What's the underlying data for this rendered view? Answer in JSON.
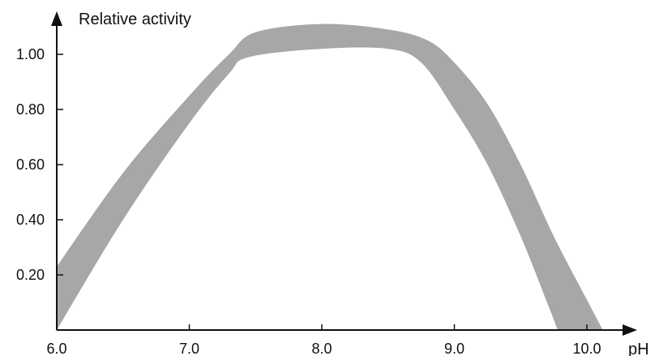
{
  "chart_data": {
    "type": "area",
    "title": "",
    "xlabel": "pH",
    "ylabel": "Relative activity",
    "xlim": [
      6.0,
      10.25
    ],
    "ylim": [
      0,
      1.2
    ],
    "x_ticks": [
      6.0,
      7.0,
      8.0,
      9.0,
      10.0
    ],
    "x_tick_labels": [
      "6.0",
      "7.0",
      "8.0",
      "9.0",
      "10.0"
    ],
    "y_ticks": [
      0.2,
      0.4,
      0.6,
      0.8,
      1.0
    ],
    "y_tick_labels": [
      "0.20",
      "0.40",
      "0.60",
      "0.80",
      "1.00"
    ],
    "grid": false,
    "band_color": "#a7a7a7",
    "band": {
      "upper": [
        [
          6.0,
          0.23
        ],
        [
          6.5,
          0.57
        ],
        [
          7.0,
          0.85
        ],
        [
          7.3,
          1.0
        ],
        [
          7.5,
          1.08
        ],
        [
          8.0,
          1.11
        ],
        [
          8.5,
          1.09
        ],
        [
          8.8,
          1.05
        ],
        [
          9.0,
          0.97
        ],
        [
          9.25,
          0.82
        ],
        [
          9.5,
          0.6
        ],
        [
          9.75,
          0.34
        ],
        [
          10.0,
          0.11
        ],
        [
          10.12,
          0.0
        ]
      ],
      "lower": [
        [
          6.0,
          0.0
        ],
        [
          6.5,
          0.4
        ],
        [
          7.0,
          0.75
        ],
        [
          7.3,
          0.93
        ],
        [
          7.45,
          0.99
        ],
        [
          8.0,
          1.02
        ],
        [
          8.5,
          1.02
        ],
        [
          8.75,
          0.97
        ],
        [
          9.0,
          0.8
        ],
        [
          9.25,
          0.6
        ],
        [
          9.5,
          0.34
        ],
        [
          9.7,
          0.1
        ],
        [
          9.78,
          0.0
        ]
      ]
    }
  }
}
